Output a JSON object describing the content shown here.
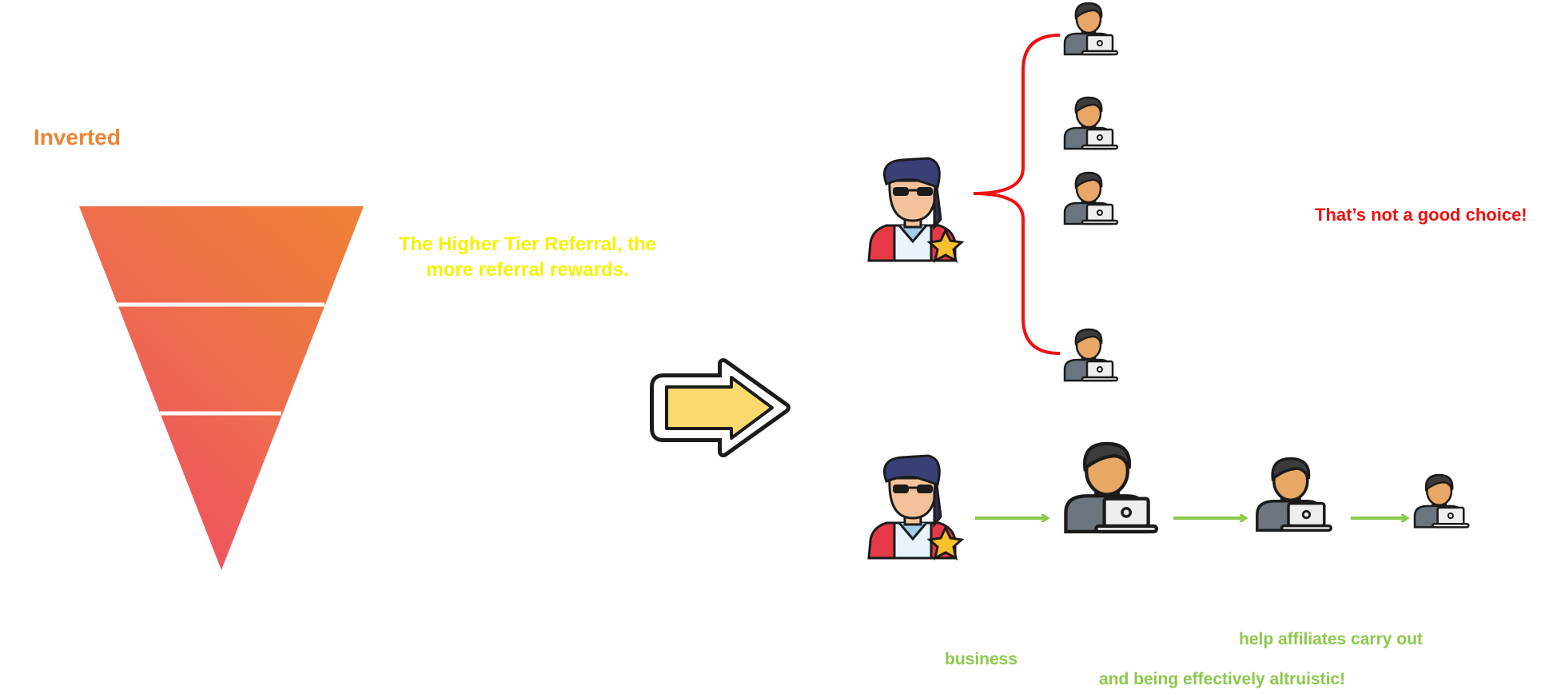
{
  "title": "Inverted",
  "tagline": "The Higher Tier Referral, the more referral rewards.",
  "warning": "That’s not a good choice!",
  "labels": {
    "business": "business",
    "help": "help affiliates carry out",
    "altruistic": "and being effectively altruistic!"
  },
  "colors": {
    "title": "#ee8433",
    "tagline": "#f5f200",
    "warning": "#ee1111",
    "labels": "#8cc84b",
    "brace": "#ee1111",
    "arrow_green": "#8cc84b",
    "funnel_top": "#ee8236",
    "funnel_bottom": "#ef4e64",
    "big_arrow_fill": "#fbd96a"
  },
  "icons": {
    "recruiter": "manager-with-star-icon",
    "affiliate": "person-with-laptop-icon",
    "transition": "right-arrow-icon",
    "funnel": "inverted-triangle-funnel"
  }
}
